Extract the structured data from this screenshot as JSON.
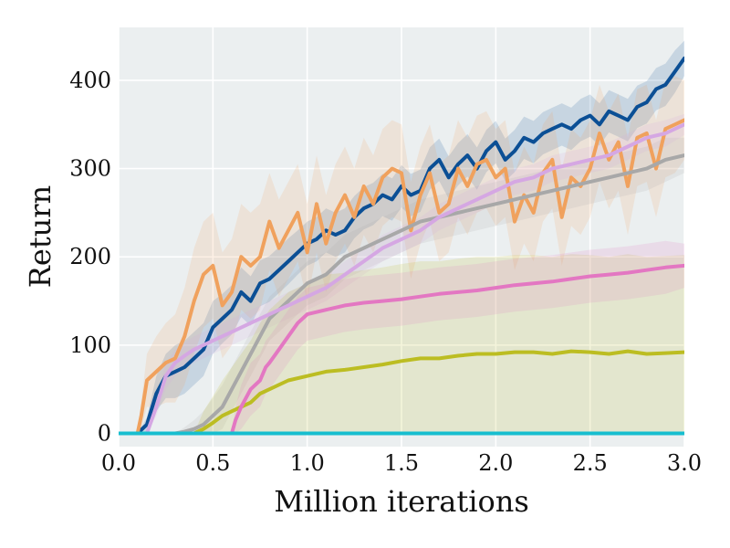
{
  "chart_data": {
    "type": "line",
    "xlabel": "Million iterations",
    "ylabel": "Return",
    "xlim": [
      0,
      3.0
    ],
    "ylim": [
      -15,
      460
    ],
    "xticks": [
      0.0,
      0.5,
      1.0,
      1.5,
      2.0,
      2.5,
      3.0
    ],
    "xtick_labels": [
      "0.0",
      "0.5",
      "1.0",
      "1.5",
      "2.0",
      "2.5",
      "3.0"
    ],
    "yticks": [
      0,
      100,
      200,
      300,
      400
    ],
    "ytick_labels": [
      "0",
      "100",
      "200",
      "300",
      "400"
    ],
    "grid": true,
    "background": "#ebeff0",
    "series": [
      {
        "color": "#0b4f95",
        "x": [
          0,
          0.1,
          0.15,
          0.2,
          0.25,
          0.3,
          0.35,
          0.4,
          0.45,
          0.5,
          0.55,
          0.6,
          0.65,
          0.7,
          0.75,
          0.8,
          0.85,
          0.9,
          0.95,
          1.0,
          1.05,
          1.1,
          1.15,
          1.2,
          1.25,
          1.3,
          1.35,
          1.4,
          1.45,
          1.5,
          1.55,
          1.6,
          1.65,
          1.7,
          1.75,
          1.8,
          1.85,
          1.9,
          1.95,
          2.0,
          2.05,
          2.1,
          2.15,
          2.2,
          2.25,
          2.3,
          2.35,
          2.4,
          2.45,
          2.5,
          2.55,
          2.6,
          2.65,
          2.7,
          2.75,
          2.8,
          2.85,
          2.9,
          2.95,
          3.0
        ],
        "y": [
          0,
          0,
          10,
          45,
          65,
          70,
          75,
          85,
          95,
          120,
          130,
          140,
          160,
          150,
          170,
          175,
          185,
          195,
          205,
          215,
          220,
          230,
          225,
          230,
          245,
          255,
          260,
          270,
          265,
          280,
          270,
          275,
          300,
          310,
          290,
          305,
          315,
          300,
          320,
          330,
          310,
          320,
          335,
          330,
          340,
          345,
          350,
          345,
          355,
          360,
          350,
          365,
          360,
          355,
          370,
          375,
          390,
          395,
          410,
          425
        ],
        "band": [
          0,
          0,
          8,
          20,
          25,
          30,
          30,
          30,
          30,
          30,
          28,
          28,
          28,
          28,
          26,
          26,
          26,
          26,
          25,
          25,
          25,
          25,
          25,
          25,
          24,
          24,
          24,
          24,
          24,
          24,
          24,
          24,
          24,
          24,
          24,
          24,
          24,
          24,
          24,
          24,
          24,
          24,
          24,
          24,
          24,
          24,
          24,
          24,
          24,
          24,
          24,
          24,
          24,
          24,
          24,
          24,
          24,
          24,
          24,
          20
        ]
      },
      {
        "color": "#f0a15d",
        "x": [
          0,
          0.1,
          0.12,
          0.15,
          0.2,
          0.25,
          0.3,
          0.35,
          0.4,
          0.45,
          0.5,
          0.55,
          0.6,
          0.65,
          0.7,
          0.75,
          0.8,
          0.85,
          0.9,
          0.95,
          1.0,
          1.05,
          1.1,
          1.15,
          1.2,
          1.25,
          1.3,
          1.35,
          1.4,
          1.45,
          1.5,
          1.55,
          1.6,
          1.65,
          1.7,
          1.75,
          1.8,
          1.85,
          1.9,
          1.95,
          2.0,
          2.05,
          2.1,
          2.15,
          2.2,
          2.25,
          2.3,
          2.35,
          2.4,
          2.45,
          2.5,
          2.55,
          2.6,
          2.65,
          2.7,
          2.75,
          2.8,
          2.85,
          2.9,
          2.95,
          3.0
        ],
        "y": [
          0,
          0,
          20,
          60,
          70,
          80,
          85,
          110,
          150,
          180,
          190,
          145,
          160,
          200,
          190,
          200,
          240,
          210,
          230,
          250,
          205,
          260,
          215,
          250,
          270,
          245,
          280,
          260,
          290,
          300,
          295,
          230,
          270,
          295,
          250,
          260,
          300,
          280,
          305,
          310,
          290,
          300,
          240,
          270,
          250,
          295,
          310,
          245,
          290,
          280,
          300,
          340,
          310,
          330,
          280,
          335,
          340,
          300,
          345,
          350,
          355
        ],
        "band": [
          0,
          0,
          15,
          30,
          40,
          45,
          50,
          55,
          60,
          60,
          60,
          60,
          60,
          60,
          60,
          60,
          55,
          55,
          55,
          55,
          55,
          55,
          55,
          55,
          55,
          55,
          55,
          55,
          55,
          55,
          55,
          55,
          55,
          55,
          55,
          55,
          55,
          55,
          55,
          55,
          55,
          55,
          55,
          55,
          55,
          55,
          55,
          55,
          55,
          55,
          55,
          55,
          55,
          55,
          55,
          55,
          55,
          55,
          55,
          55,
          45
        ]
      },
      {
        "color": "#a8a8a8",
        "x": [
          0,
          0.3,
          0.35,
          0.4,
          0.45,
          0.5,
          0.55,
          0.6,
          0.65,
          0.7,
          0.75,
          0.8,
          0.85,
          0.9,
          0.95,
          1.0,
          1.1,
          1.2,
          1.3,
          1.4,
          1.5,
          1.6,
          1.7,
          1.8,
          1.9,
          2.0,
          2.1,
          2.2,
          2.3,
          2.4,
          2.5,
          2.6,
          2.7,
          2.8,
          2.9,
          3.0
        ],
        "y": [
          0,
          0,
          2,
          5,
          10,
          20,
          30,
          50,
          70,
          90,
          110,
          130,
          140,
          150,
          160,
          170,
          180,
          200,
          210,
          220,
          230,
          240,
          245,
          250,
          255,
          260,
          265,
          270,
          275,
          280,
          285,
          290,
          295,
          300,
          310,
          315
        ],
        "band": [
          0,
          0,
          5,
          10,
          15,
          20,
          25,
          25,
          25,
          25,
          25,
          25,
          25,
          25,
          25,
          25,
          25,
          25,
          25,
          25,
          25,
          25,
          25,
          25,
          25,
          25,
          25,
          25,
          25,
          25,
          25,
          25,
          25,
          25,
          25,
          20
        ]
      },
      {
        "color": "#d5a7e3",
        "x": [
          0,
          0.15,
          0.2,
          0.25,
          0.3,
          0.35,
          0.4,
          0.5,
          0.6,
          0.7,
          0.8,
          0.9,
          1.0,
          1.1,
          1.2,
          1.3,
          1.4,
          1.5,
          1.6,
          1.7,
          1.8,
          1.9,
          2.0,
          2.1,
          2.2,
          2.3,
          2.4,
          2.5,
          2.6,
          2.7,
          2.8,
          2.9,
          3.0
        ],
        "y": [
          0,
          0,
          30,
          65,
          80,
          88,
          95,
          105,
          115,
          125,
          135,
          145,
          155,
          165,
          180,
          195,
          210,
          220,
          230,
          245,
          255,
          265,
          275,
          285,
          290,
          300,
          305,
          310,
          315,
          325,
          335,
          340,
          350
        ],
        "band": [
          0,
          0,
          10,
          15,
          15,
          15,
          15,
          15,
          15,
          15,
          15,
          15,
          15,
          15,
          15,
          15,
          15,
          15,
          15,
          15,
          15,
          15,
          15,
          15,
          15,
          15,
          15,
          15,
          15,
          15,
          15,
          15,
          12
        ]
      },
      {
        "color": "#bcbd22",
        "x": [
          0,
          0.4,
          0.45,
          0.5,
          0.55,
          0.6,
          0.65,
          0.7,
          0.75,
          0.8,
          0.9,
          1.0,
          1.1,
          1.2,
          1.3,
          1.4,
          1.5,
          1.6,
          1.7,
          1.8,
          1.9,
          2.0,
          2.1,
          2.2,
          2.3,
          2.4,
          2.5,
          2.6,
          2.7,
          2.8,
          2.9,
          3.0
        ],
        "y": [
          0,
          0,
          5,
          12,
          20,
          25,
          30,
          35,
          45,
          50,
          60,
          65,
          70,
          72,
          75,
          78,
          82,
          85,
          85,
          88,
          90,
          90,
          92,
          92,
          90,
          93,
          92,
          90,
          93,
          90,
          91,
          92
        ],
        "band": [
          0,
          0,
          20,
          30,
          40,
          50,
          60,
          70,
          80,
          90,
          100,
          105,
          110,
          110,
          110,
          110,
          110,
          110,
          110,
          110,
          110,
          110,
          110,
          110,
          110,
          110,
          110,
          110,
          110,
          110,
          110,
          110
        ]
      },
      {
        "color": "#e377c2",
        "x": [
          0,
          0.6,
          0.62,
          0.65,
          0.7,
          0.75,
          0.78,
          0.8,
          0.85,
          0.9,
          0.95,
          1.0,
          1.1,
          1.2,
          1.3,
          1.4,
          1.5,
          1.6,
          1.7,
          1.8,
          1.9,
          2.0,
          2.1,
          2.2,
          2.3,
          2.4,
          2.5,
          2.6,
          2.7,
          2.8,
          2.9,
          3.0
        ],
        "y": [
          0,
          0,
          15,
          30,
          50,
          60,
          75,
          80,
          95,
          110,
          125,
          135,
          140,
          145,
          148,
          150,
          152,
          155,
          158,
          160,
          162,
          165,
          168,
          170,
          172,
          175,
          178,
          180,
          182,
          185,
          188,
          190
        ],
        "band": [
          0,
          0,
          15,
          25,
          30,
          30,
          30,
          30,
          30,
          30,
          30,
          30,
          30,
          30,
          30,
          30,
          30,
          30,
          30,
          30,
          30,
          30,
          30,
          30,
          30,
          30,
          30,
          30,
          30,
          30,
          30,
          25
        ]
      },
      {
        "color": "#17becf",
        "x": [
          0,
          3.0
        ],
        "y": [
          0,
          0
        ],
        "band": [
          0,
          0
        ]
      }
    ]
  }
}
